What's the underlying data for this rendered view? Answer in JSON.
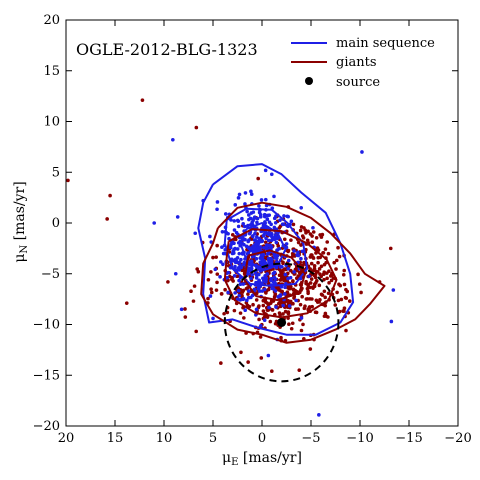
{
  "chart_data": {
    "type": "scatter",
    "title": "OGLE-2012-BLG-1323",
    "xlabel_main": "μ",
    "xlabel_sub": "E",
    "xlabel_unit": " [mas/yr]",
    "ylabel_main": "μ",
    "ylabel_sub": "N",
    "ylabel_unit": " [mas/yr]",
    "xlim": [
      20,
      -20
    ],
    "ylim": [
      -20,
      20
    ],
    "x_ticks": [
      20,
      15,
      10,
      5,
      0,
      -5,
      -10,
      -15,
      -20
    ],
    "x_tick_labels": [
      "20",
      "15",
      "10",
      "5",
      "0",
      "−5",
      "−10",
      "−15",
      "−20"
    ],
    "y_ticks": [
      20,
      15,
      10,
      5,
      0,
      -5,
      -10,
      -15,
      -20
    ],
    "y_tick_labels": [
      "20",
      "15",
      "10",
      "5",
      "0",
      "−5",
      "−10",
      "−15",
      "−20"
    ],
    "grid": false,
    "legend_position": "top-right",
    "legend": [
      {
        "label": "main sequence",
        "marker": "line",
        "color": "#1f1fe6"
      },
      {
        "label": "giants",
        "marker": "line",
        "color": "#8b0000"
      },
      {
        "label": "source",
        "marker": "dot",
        "color": "#000000"
      }
    ],
    "series": [
      {
        "name": "main sequence",
        "color": "#1f1fe6",
        "cloud": {
          "count": 460,
          "center": [
            0.5,
            -3.0
          ],
          "spread": [
            2.0,
            2.5
          ]
        },
        "outliers": [
          [
            -10.2,
            7.0
          ],
          [
            9.1,
            8.2
          ],
          [
            11.0,
            0.0
          ],
          [
            8.6,
            0.6
          ],
          [
            8.8,
            -5.0
          ],
          [
            8.2,
            -8.5
          ],
          [
            -5.8,
            -18.9
          ],
          [
            -13.2,
            -9.7
          ],
          [
            -13.4,
            -6.6
          ],
          [
            -1.0,
            4.8
          ],
          [
            6.0,
            2.2
          ],
          [
            -4.0,
            1.5
          ]
        ],
        "contours": [
          [
            [
              5.0,
              3.8
            ],
            [
              2.5,
              5.6
            ],
            [
              0.0,
              5.8
            ],
            [
              -2.0,
              4.8
            ],
            [
              -4.0,
              3.0
            ],
            [
              -6.5,
              1.0
            ],
            [
              -8.0,
              -2.0
            ],
            [
              -9.0,
              -5.0
            ],
            [
              -9.3,
              -7.8
            ],
            [
              -8.0,
              -9.8
            ],
            [
              -5.5,
              -11.0
            ],
            [
              -2.5,
              -11.0
            ],
            [
              0.5,
              -10.3
            ],
            [
              3.0,
              -9.5
            ],
            [
              5.4,
              -9.8
            ],
            [
              6.0,
              -7.0
            ],
            [
              5.8,
              -3.5
            ],
            [
              6.5,
              -0.5
            ],
            [
              6.0,
              2.0
            ],
            [
              5.0,
              3.8
            ]
          ],
          [
            [
              3.6,
              0.3
            ],
            [
              1.6,
              1.4
            ],
            [
              -1.0,
              1.3
            ],
            [
              -2.6,
              0.0
            ],
            [
              -4.2,
              -2.0
            ],
            [
              -4.6,
              -4.5
            ],
            [
              -3.4,
              -6.0
            ],
            [
              -1.0,
              -6.2
            ],
            [
              1.2,
              -6.0
            ],
            [
              3.0,
              -4.5
            ],
            [
              3.8,
              -2.0
            ],
            [
              3.6,
              0.3
            ]
          ],
          [
            [
              1.6,
              -0.6
            ],
            [
              0.0,
              0.0
            ],
            [
              -1.6,
              -1.0
            ],
            [
              -2.4,
              -2.6
            ],
            [
              -1.6,
              -4.2
            ],
            [
              0.0,
              -4.7
            ],
            [
              1.6,
              -3.6
            ],
            [
              2.2,
              -2.0
            ],
            [
              1.6,
              -0.6
            ]
          ]
        ]
      },
      {
        "name": "giants",
        "color": "#8b0000",
        "cloud": {
          "count": 700,
          "center": [
            -2.0,
            -5.5
          ],
          "spread": [
            3.2,
            2.6
          ]
        },
        "outliers": [
          [
            19.8,
            4.2
          ],
          [
            15.5,
            2.7
          ],
          [
            12.2,
            12.1
          ],
          [
            6.7,
            9.4
          ],
          [
            15.8,
            0.4
          ],
          [
            13.8,
            -7.9
          ],
          [
            9.6,
            -5.8
          ],
          [
            -1.0,
            -14.6
          ],
          [
            -12.0,
            -5.8
          ],
          [
            6.5,
            -4.8
          ],
          [
            4.2,
            -13.8
          ],
          [
            -3.8,
            -14.5
          ]
        ],
        "contours": [
          [
            [
              4.5,
              -0.5
            ],
            [
              2.5,
              1.5
            ],
            [
              0.0,
              2.0
            ],
            [
              -2.5,
              1.6
            ],
            [
              -5.0,
              0.5
            ],
            [
              -7.0,
              -1.0
            ],
            [
              -9.0,
              -3.0
            ],
            [
              -10.5,
              -5.0
            ],
            [
              -12.5,
              -6.2
            ],
            [
              -11.0,
              -8.0
            ],
            [
              -9.5,
              -9.5
            ],
            [
              -7.5,
              -10.5
            ],
            [
              -5.0,
              -11.5
            ],
            [
              -2.5,
              -11.8
            ],
            [
              0.0,
              -11.0
            ],
            [
              2.5,
              -10.5
            ],
            [
              5.0,
              -9.0
            ],
            [
              6.2,
              -7.0
            ],
            [
              6.0,
              -4.0
            ],
            [
              5.0,
              -2.0
            ],
            [
              4.5,
              -0.5
            ]
          ],
          [
            [
              3.4,
              -1.8
            ],
            [
              1.0,
              -0.6
            ],
            [
              -2.0,
              -0.8
            ],
            [
              -4.6,
              -2.0
            ],
            [
              -6.6,
              -3.6
            ],
            [
              -7.6,
              -5.6
            ],
            [
              -6.8,
              -7.6
            ],
            [
              -4.6,
              -8.9
            ],
            [
              -2.0,
              -9.3
            ],
            [
              0.6,
              -8.9
            ],
            [
              2.8,
              -7.6
            ],
            [
              3.8,
              -5.6
            ],
            [
              3.6,
              -3.4
            ],
            [
              3.4,
              -1.8
            ]
          ],
          [
            [
              1.4,
              -3.2
            ],
            [
              -0.8,
              -2.7
            ],
            [
              -3.0,
              -3.4
            ],
            [
              -4.4,
              -5.0
            ],
            [
              -3.8,
              -6.9
            ],
            [
              -1.6,
              -7.6
            ],
            [
              0.6,
              -7.2
            ],
            [
              1.8,
              -5.6
            ],
            [
              1.4,
              -3.2
            ]
          ]
        ]
      }
    ],
    "source": {
      "name": "source",
      "x": -2.0,
      "y": -9.8,
      "color": "#000000"
    },
    "source_circle": {
      "center": [
        -2.0,
        -9.8
      ],
      "radius": 5.8,
      "style": "dashed",
      "color": "#000000"
    }
  }
}
